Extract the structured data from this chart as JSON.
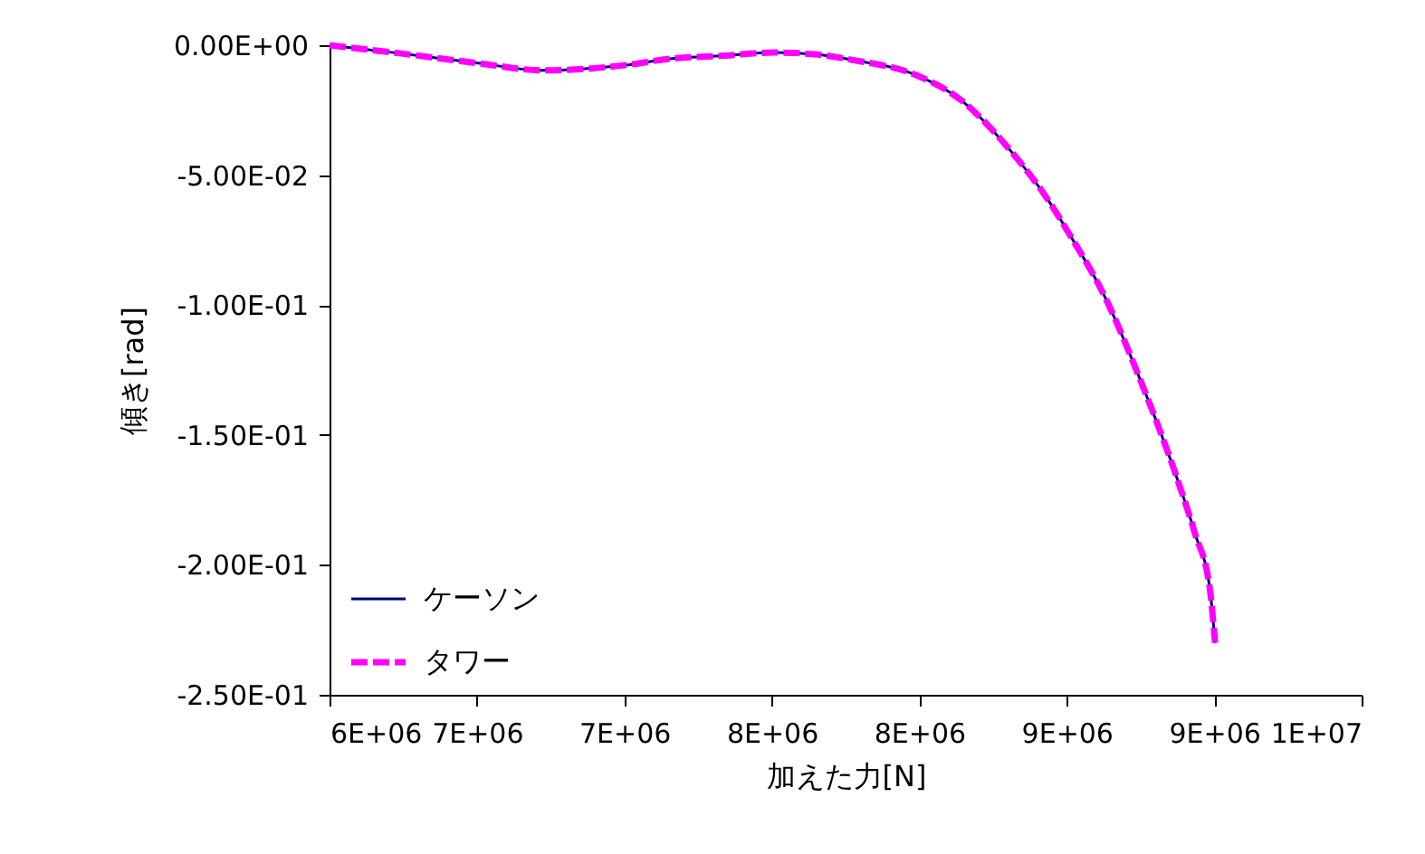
{
  "chart_data": {
    "type": "line",
    "xlabel": "加えた力[N]",
    "ylabel": "傾き[rad]",
    "x": [
      6000000,
      6230000,
      6510000,
      6725000,
      7000000,
      7155000,
      7340000,
      7505000,
      7646000,
      7770000,
      8000000,
      8140000,
      8290000,
      8445000,
      8505000,
      8630000,
      8750000,
      8875000,
      8935000,
      8985000,
      9003000
    ],
    "series": [
      {
        "name": "ケーソン",
        "color": "#000080",
        "line_style": "solid",
        "values": [
          0,
          -0.003,
          -0.007,
          -0.0097,
          -0.0077,
          -0.0052,
          -0.004,
          -0.0028,
          -0.0035,
          -0.0056,
          -0.012,
          -0.021,
          -0.038,
          -0.061,
          -0.072,
          -0.097,
          -0.129,
          -0.167,
          -0.188,
          -0.209,
          -0.23
        ]
      },
      {
        "name": "タワー",
        "color": "#ff00ff",
        "line_style": "dashed",
        "values": [
          0,
          -0.003,
          -0.007,
          -0.0097,
          -0.0077,
          -0.0052,
          -0.004,
          -0.0028,
          -0.0035,
          -0.0056,
          -0.012,
          -0.021,
          -0.038,
          -0.061,
          -0.072,
          -0.097,
          -0.129,
          -0.167,
          -0.188,
          -0.209,
          -0.23
        ]
      }
    ],
    "xlim": [
      6000000,
      9500000
    ],
    "xticks": [
      {
        "value": 6000000,
        "label": "6E+06"
      },
      {
        "value": 6500000,
        "label": "7E+06"
      },
      {
        "value": 7000000,
        "label": "7E+06"
      },
      {
        "value": 7500000,
        "label": "8E+06"
      },
      {
        "value": 8000000,
        "label": "8E+06"
      },
      {
        "value": 8500000,
        "label": "9E+06"
      },
      {
        "value": 9000000,
        "label": "9E+06"
      },
      {
        "value": 9500000,
        "label": "1E+07"
      }
    ],
    "ylim": [
      -0.25,
      0
    ],
    "yticks": [
      {
        "value": 0,
        "label": "0.00E+00"
      },
      {
        "value": -0.05,
        "label": "-5.00E-02"
      },
      {
        "value": -0.1,
        "label": "-1.00E-01"
      },
      {
        "value": -0.15,
        "label": "-1.50E-01"
      },
      {
        "value": -0.2,
        "label": "-2.00E-01"
      },
      {
        "value": -0.25,
        "label": "-2.50E-01"
      }
    ],
    "grid": false,
    "legend": "bottom left"
  }
}
